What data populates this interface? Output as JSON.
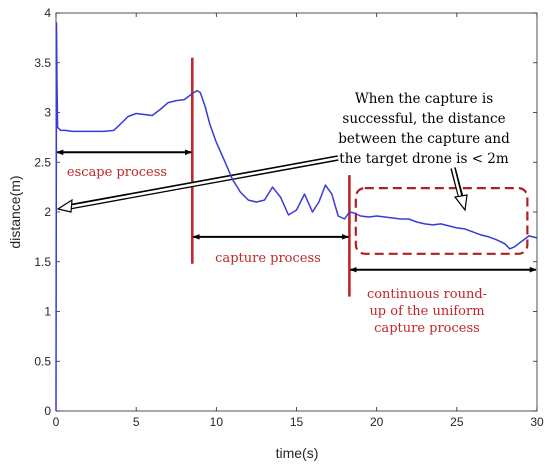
{
  "chart_data": {
    "type": "line",
    "xlabel": "time(s)",
    "ylabel": "distance(m)",
    "xlim": [
      0,
      30
    ],
    "ylim": [
      0,
      4
    ],
    "xticks": [
      0,
      5,
      10,
      15,
      20,
      25,
      30
    ],
    "yticks": [
      0,
      0.5,
      1,
      1.5,
      2,
      2.5,
      3,
      3.5,
      4
    ],
    "grid": false,
    "series": [
      {
        "color": "#3a3ad8",
        "x": [
          0,
          0.03,
          0.06,
          0.1,
          0.3,
          0.6,
          1.0,
          2.0,
          3.0,
          3.6,
          4.0,
          4.5,
          5.0,
          5.5,
          6.0,
          6.5,
          7.0,
          7.5,
          8.0,
          8.5,
          8.8,
          9.0,
          9.3,
          9.6,
          10.0,
          10.5,
          11.0,
          11.5,
          12.0,
          12.5,
          13.0,
          13.5,
          14.0,
          14.5,
          15.0,
          15.5,
          16.0,
          16.4,
          16.8,
          17.2,
          17.6,
          18.0,
          18.3,
          18.6,
          19.0,
          19.5,
          20.0,
          20.5,
          21.0,
          21.5,
          22.0,
          22.5,
          23.0,
          23.5,
          24.0,
          24.5,
          25.0,
          25.5,
          26.0,
          26.5,
          27.0,
          27.5,
          28.0,
          28.3,
          28.6,
          29.0,
          29.5,
          30.0
        ],
        "y": [
          0,
          3.9,
          3.3,
          2.85,
          2.82,
          2.82,
          2.81,
          2.81,
          2.81,
          2.82,
          2.88,
          2.96,
          2.99,
          2.98,
          2.97,
          3.03,
          3.1,
          3.12,
          3.13,
          3.19,
          3.22,
          3.2,
          3.06,
          2.88,
          2.7,
          2.52,
          2.33,
          2.2,
          2.12,
          2.1,
          2.12,
          2.25,
          2.15,
          1.97,
          2.02,
          2.18,
          2.0,
          2.1,
          2.27,
          2.18,
          1.96,
          1.93,
          2.0,
          1.99,
          1.96,
          1.95,
          1.96,
          1.95,
          1.94,
          1.93,
          1.93,
          1.9,
          1.88,
          1.87,
          1.88,
          1.86,
          1.84,
          1.83,
          1.8,
          1.77,
          1.75,
          1.72,
          1.68,
          1.63,
          1.65,
          1.7,
          1.76,
          1.74
        ]
      }
    ],
    "annotations": {
      "escape_label": "escape process",
      "capture_label": "capture process",
      "roundup_lines": [
        "continuous round-",
        "up of the uniform",
        "capture process"
      ],
      "note_lines": [
        "When the capture is",
        "successful, the distance",
        "between the capture and",
        "the target drone is < 2m"
      ]
    },
    "markers": {
      "vlines_x": [
        8.5,
        18.3
      ],
      "escape_span": [
        0,
        8.5
      ],
      "escape_arrow_y": 2.6,
      "capture_span": [
        8.5,
        18.3
      ],
      "capture_arrow_y": 1.75,
      "roundup_span": [
        18.3,
        30
      ],
      "roundup_arrow_y": 1.42,
      "highlight_box": {
        "x": [
          18.7,
          29.4
        ],
        "y": [
          1.58,
          2.24
        ]
      }
    },
    "colors": {
      "line": "#3a3ad8",
      "marker_red": "#c0262b",
      "highlight_dash": "#b02020",
      "arrow": "#000000"
    }
  }
}
